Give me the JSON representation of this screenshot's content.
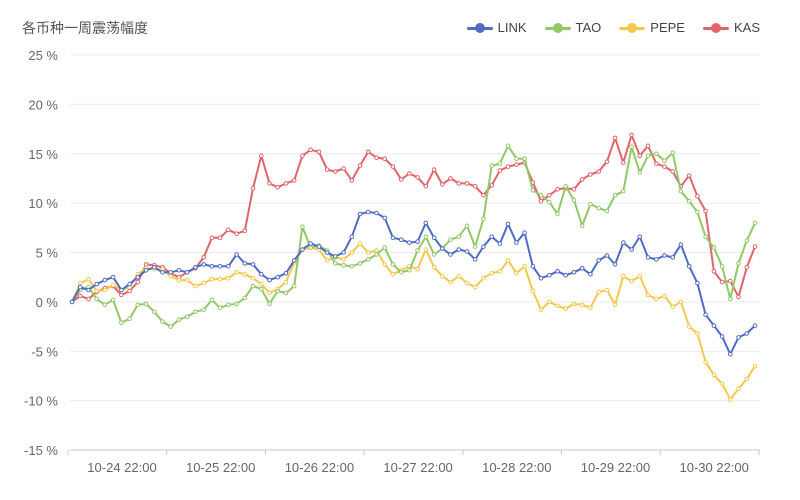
{
  "chart_data": {
    "type": "line",
    "title": "各币种一周震荡幅度",
    "xlabel": "",
    "ylabel": "",
    "ylim": [
      -15,
      25
    ],
    "y_ticks": [
      "25 %",
      "20 %",
      "15 %",
      "10 %",
      "5 %",
      "0 %",
      "-5 %",
      "-10 %",
      "-15 %"
    ],
    "x_ticks": [
      "10-24 22:00",
      "10-25 22:00",
      "10-26 22:00",
      "10-27 22:00",
      "10-28 22:00",
      "10-29 22:00",
      "10-30 22:00"
    ],
    "grid": true,
    "legend_position": "top-right",
    "series": [
      {
        "name": "LINK",
        "color": "#4e6cc4",
        "values": [
          0,
          1.5,
          1.2,
          1.8,
          2.2,
          2.5,
          1.2,
          1.8,
          2.5,
          3.2,
          3.5,
          3.0,
          3.0,
          3.2,
          3.0,
          3.5,
          3.8,
          3.6,
          3.6,
          3.6,
          4.8,
          3.9,
          3.8,
          2.8,
          2.2,
          2.5,
          2.9,
          4.2,
          5.3,
          5.9,
          5.6,
          5.0,
          4.6,
          5.0,
          6.6,
          8.9,
          9.1,
          9.0,
          8.5,
          6.5,
          6.3,
          6.0,
          6.1,
          8.0,
          6.5,
          5.4,
          4.8,
          5.3,
          5.1,
          4.3,
          5.6,
          6.6,
          5.9,
          7.9,
          6.0,
          7.0,
          3.6,
          2.4,
          2.7,
          3.1,
          2.7,
          3.0,
          3.4,
          2.8,
          4.2,
          4.7,
          3.8,
          6.0,
          5.3,
          6.6,
          4.5,
          4.3,
          4.7,
          4.5,
          5.8,
          3.6,
          1.9,
          -1.3,
          -2.4,
          -3.5,
          -5.3,
          -3.6,
          -3.2,
          -2.4
        ]
      },
      {
        "name": "TAO",
        "color": "#91c868",
        "values": [
          0,
          1.2,
          1.5,
          0.3,
          -0.3,
          0.2,
          -2.1,
          -1.7,
          -0.3,
          -0.2,
          -1.0,
          -2.0,
          -2.5,
          -1.8,
          -1.5,
          -1.0,
          -0.8,
          0.2,
          -0.6,
          -0.3,
          -0.2,
          0.4,
          1.6,
          1.3,
          -0.2,
          1.1,
          0.9,
          1.6,
          7.6,
          5.5,
          5.7,
          5.2,
          3.9,
          3.7,
          3.6,
          3.9,
          4.3,
          4.8,
          5.5,
          3.8,
          3.0,
          3.2,
          5.2,
          6.6,
          4.8,
          5.4,
          6.3,
          6.6,
          7.7,
          5.6,
          8.4,
          13.8,
          14.0,
          15.8,
          14.5,
          14.5,
          11.3,
          10.8,
          10.1,
          8.9,
          11.7,
          10.3,
          7.7,
          9.9,
          9.5,
          9.2,
          10.8,
          11.2,
          15.7,
          13.1,
          14.8,
          15.0,
          14.3,
          15.1,
          11.2,
          10.2,
          9.1,
          6.6,
          5.5,
          3.6,
          0.3,
          3.9,
          6.2,
          8.0
        ]
      },
      {
        "name": "PEPE",
        "color": "#f5c84c",
        "values": [
          0,
          1.9,
          2.3,
          1.1,
          1.2,
          1.7,
          1.2,
          1.5,
          2.8,
          3.4,
          3.3,
          3.3,
          2.6,
          2.2,
          2.2,
          1.6,
          1.9,
          2.3,
          2.3,
          2.4,
          3.0,
          2.8,
          2.4,
          1.8,
          0.9,
          1.3,
          2.0,
          4.0,
          5.3,
          5.5,
          5.3,
          4.2,
          4.5,
          4.3,
          5.0,
          5.9,
          5.0,
          5.2,
          3.8,
          2.8,
          3.2,
          3.6,
          3.3,
          5.3,
          3.5,
          2.6,
          2.0,
          2.6,
          1.9,
          1.5,
          2.4,
          2.9,
          3.1,
          4.2,
          2.9,
          3.6,
          1.1,
          -0.8,
          0.0,
          -0.4,
          -0.7,
          -0.2,
          -0.3,
          -0.6,
          1.0,
          1.2,
          -0.3,
          2.6,
          2.1,
          2.6,
          0.7,
          0.3,
          0.6,
          -0.5,
          0.0,
          -2.5,
          -3.2,
          -6.1,
          -7.4,
          -8.3,
          -9.9,
          -8.8,
          -7.8,
          -6.5
        ]
      },
      {
        "name": "KAS",
        "color": "#e0646a",
        "values": [
          0,
          0.6,
          0.3,
          1.0,
          1.4,
          1.6,
          0.7,
          1.1,
          2.0,
          3.8,
          3.7,
          3.5,
          2.9,
          2.5,
          3.0,
          3.4,
          4.5,
          6.5,
          6.5,
          7.3,
          6.9,
          7.2,
          11.5,
          14.8,
          12.0,
          11.6,
          12.0,
          12.3,
          14.8,
          15.4,
          15.2,
          13.4,
          13.2,
          13.5,
          12.3,
          13.8,
          15.2,
          14.6,
          14.5,
          13.7,
          12.4,
          13.0,
          12.6,
          11.7,
          13.4,
          11.9,
          12.5,
          12.0,
          12.0,
          11.7,
          10.8,
          11.8,
          13.3,
          13.7,
          13.9,
          14.1,
          12.1,
          10.2,
          10.8,
          11.4,
          11.5,
          11.4,
          12.4,
          12.9,
          13.2,
          14.2,
          16.6,
          14.1,
          16.9,
          14.8,
          15.8,
          14.0,
          13.7,
          13.2,
          11.7,
          12.8,
          10.7,
          9.2,
          3.1,
          2.0,
          2.1,
          0.5,
          3.5,
          5.6
        ]
      }
    ]
  }
}
